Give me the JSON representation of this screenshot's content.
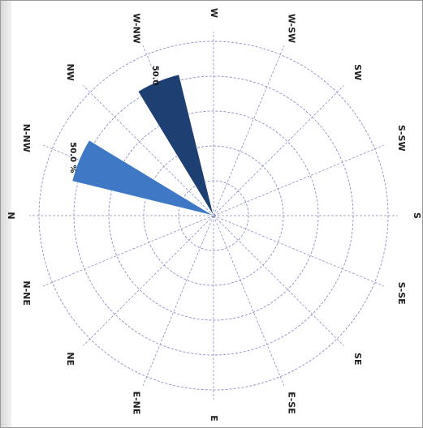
{
  "chart_data": {
    "type": "wind-rose",
    "title": "",
    "directions": [
      "N",
      "N-NE",
      "NE",
      "E-NE",
      "E",
      "E-SE",
      "SE",
      "S-SE",
      "S",
      "S-SW",
      "SW",
      "W-SW",
      "W",
      "W-NW",
      "NW",
      "N-NW"
    ],
    "rmax": 60,
    "ring_count": 5,
    "series": [
      {
        "direction": "N-NW",
        "value": 50.0,
        "label": "50.0 %",
        "color": "#3f78c4"
      },
      {
        "direction": "W-NW",
        "value": 50.0,
        "label": "50.0",
        "color": "#1e3f72"
      }
    ],
    "grid": true
  },
  "colors": {
    "grid": "#8a8fc4",
    "frame": "#9a9a9a"
  }
}
